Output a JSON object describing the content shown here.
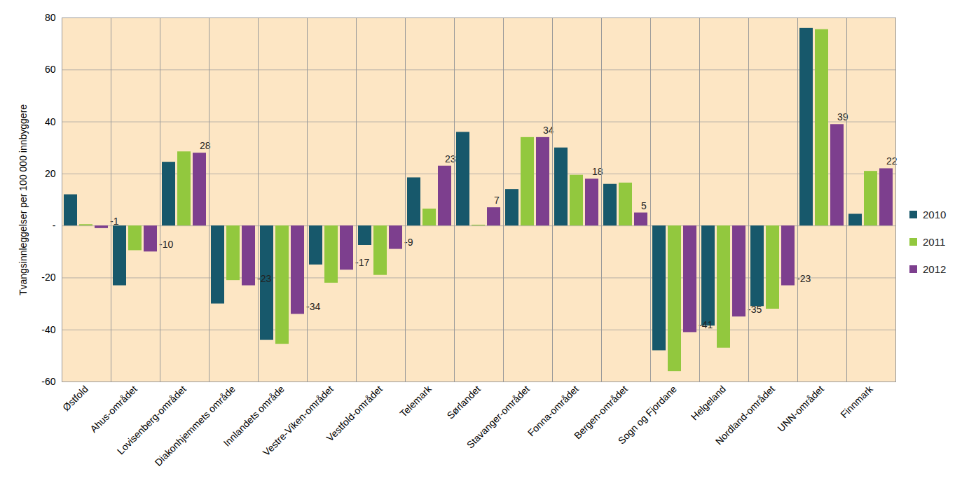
{
  "chart_data": {
    "type": "bar",
    "y_label": "Tvangsinnleggelser per 100 000 innbyggere",
    "categories": [
      "Østfold",
      "Ahus-området",
      "Lovisenberg-området",
      "Diakonhjemmets område",
      "Innlandets område",
      "Vestre-Viken-området",
      "Vestfold-området",
      "Telemark",
      "Sørlandet",
      "Stavanger-området",
      "Fonna-området",
      "Bergen-området",
      "Sogn og Fjordane",
      "Helgeland",
      "Nordland-området",
      "UNN-området",
      "Finnmark"
    ],
    "series": [
      {
        "name": "2010",
        "color": "#17586b",
        "values": [
          12,
          -23,
          24.5,
          -30,
          -44,
          -15,
          -7.5,
          18.5,
          36,
          14,
          30,
          16,
          -48,
          -38.5,
          -31,
          76,
          4.5
        ]
      },
      {
        "name": "2011",
        "color": "#92c83e",
        "values": [
          0.5,
          -9.5,
          28.5,
          -21,
          -45.5,
          -22,
          -19,
          6.5,
          0.3,
          34,
          19.5,
          16.5,
          -56,
          -47,
          -32,
          75.5,
          21
        ]
      },
      {
        "name": "2012",
        "color": "#7d3f8e",
        "data_labels": true,
        "values": [
          -1,
          -10,
          28,
          -23,
          -34,
          -17,
          -9,
          23,
          7,
          34,
          18,
          5,
          -41,
          -35,
          -23,
          39,
          22
        ]
      }
    ],
    "ylim": [
      -60,
      80
    ],
    "yticks": [
      -60,
      -40,
      -20,
      {
        "value": 0,
        "label": "-"
      },
      20,
      40,
      60,
      80
    ],
    "grid": true,
    "legend": "right"
  }
}
